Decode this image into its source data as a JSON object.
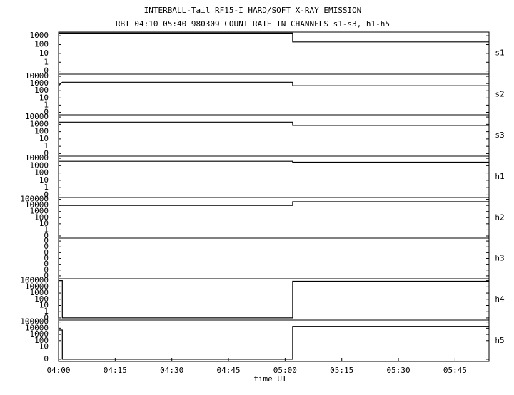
{
  "chart_data": [
    {
      "type": "line",
      "title": "INTERBALL-Tail RF15-I HARD/SOFT X-RAY EMISSION",
      "subtitle": "RBT 04:10 05:40 980309  COUNT RATE IN CHANNELS s1-s3, h1-h5",
      "ylabel": "s1",
      "log_scale": true,
      "xlim": [
        "04:00",
        "05:54"
      ],
      "ylim": [
        0,
        2600
      ],
      "yticks": [
        1000,
        100,
        10,
        1,
        0
      ],
      "series": [
        {
          "color": "#000000",
          "x": [
            "04:00",
            "05:02",
            "05:02",
            "05:54"
          ],
          "values": [
            2000,
            2000,
            200,
            200
          ]
        }
      ]
    },
    {
      "type": "line",
      "ylabel": "s2",
      "log_scale": true,
      "xlim": [
        "04:00",
        "05:54"
      ],
      "ylim": [
        0,
        20000
      ],
      "yticks": [
        10000,
        1000,
        100,
        10,
        1,
        0
      ],
      "series": [
        {
          "color": "#000000",
          "x": [
            "04:00",
            "04:01",
            "05:02",
            "05:02",
            "05:54"
          ],
          "values": [
            500,
            1500,
            1500,
            500,
            500
          ]
        }
      ]
    },
    {
      "type": "line",
      "ylabel": "s3",
      "log_scale": true,
      "xlim": [
        "04:00",
        "05:54"
      ],
      "ylim": [
        0,
        20000
      ],
      "yticks": [
        10000,
        1000,
        100,
        10,
        1,
        0
      ],
      "series": [
        {
          "color": "#000000",
          "x": [
            "04:00",
            "05:02",
            "05:02",
            "05:54"
          ],
          "values": [
            2000,
            2000,
            700,
            700
          ]
        }
      ]
    },
    {
      "type": "line",
      "ylabel": "h1",
      "log_scale": true,
      "xlim": [
        "04:00",
        "05:54"
      ],
      "ylim": [
        0,
        20000
      ],
      "yticks": [
        10000,
        1000,
        100,
        10,
        1,
        0
      ],
      "series": [
        {
          "color": "#000000",
          "x": [
            "04:00",
            "05:02",
            "05:02",
            "05:54"
          ],
          "values": [
            4000,
            4000,
            3000,
            3000
          ]
        }
      ]
    },
    {
      "type": "line",
      "ylabel": "h2",
      "log_scale": true,
      "xlim": [
        "04:00",
        "05:54"
      ],
      "ylim": [
        0,
        200000
      ],
      "yticks": [
        100000,
        10000,
        1000,
        100,
        10,
        1,
        0
      ],
      "series": [
        {
          "color": "#000000",
          "x": [
            "04:00",
            "05:02",
            "05:02",
            "05:54"
          ],
          "values": [
            10000,
            10000,
            40000,
            40000
          ]
        }
      ]
    },
    {
      "type": "line",
      "ylabel": "h3",
      "log_scale": false,
      "xlim": [
        "04:00",
        "05:54"
      ],
      "ylim": [
        -3.5,
        3.5
      ],
      "yticks": [
        {
          "value": 3,
          "label": "0"
        },
        {
          "value": 2,
          "label": "0"
        },
        {
          "value": 1,
          "label": "0"
        },
        0,
        {
          "value": -1,
          "label": "0"
        },
        {
          "value": -2,
          "label": "0"
        },
        {
          "value": -3,
          "label": "0"
        }
      ]
    },
    {
      "type": "line",
      "ylabel": "h4",
      "log_scale": true,
      "xlim": [
        "04:00",
        "05:54"
      ],
      "ylim": [
        0,
        200000
      ],
      "yticks": [
        100000,
        10000,
        1000,
        100,
        10,
        1,
        0
      ],
      "series": [
        {
          "color": "#000000",
          "x": [
            "04:00",
            "04:00",
            "04:01",
            "04:01",
            "05:02",
            "05:02",
            "05:54"
          ],
          "values": [
            0,
            100000,
            100000,
            0,
            0,
            80000,
            80000
          ]
        }
      ]
    },
    {
      "type": "line",
      "ylabel": "h5",
      "log_scale": true,
      "xlim": [
        "04:00",
        "05:54"
      ],
      "ylim": [
        0,
        200000
      ],
      "yticks": [
        100000,
        10000,
        1000,
        100,
        10,
        0
      ],
      "xlabel": "time UT",
      "xticks": [
        "04:00",
        "04:15",
        "04:30",
        "04:45",
        "05:00",
        "05:15",
        "05:30",
        "05:45"
      ],
      "series": [
        {
          "color": "#000000",
          "x": [
            "04:00",
            "04:01",
            "04:01",
            "05:02",
            "05:02",
            "05:54"
          ],
          "values": [
            5000,
            5000,
            0,
            0,
            20000,
            20000
          ]
        }
      ]
    }
  ]
}
